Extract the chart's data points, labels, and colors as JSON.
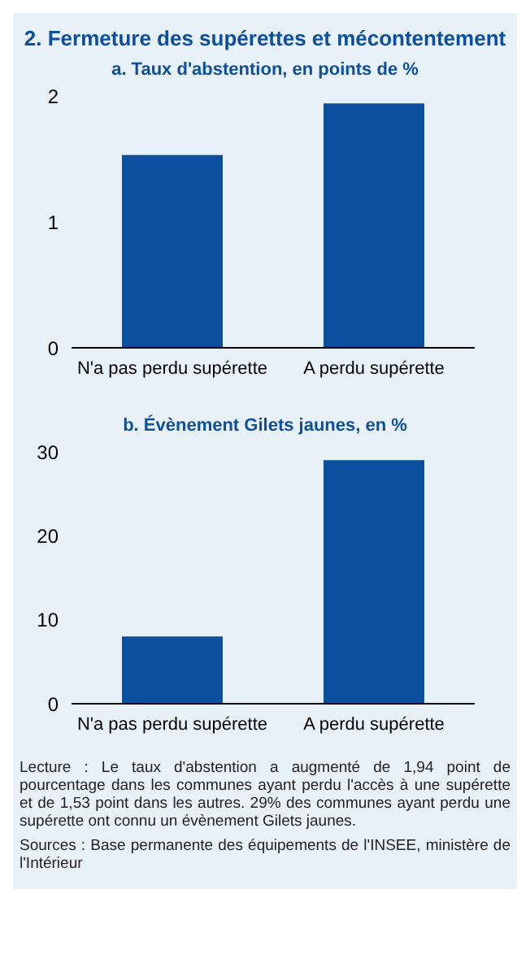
{
  "chart_data": [
    {
      "type": "bar",
      "title": "2. Fermeture des supérettes et mécontentement",
      "subtitle": "a. Taux d'abstention, en points de %",
      "categories": [
        "N'a pas perdu supérette",
        "A perdu supérette"
      ],
      "values": [
        1.53,
        1.94
      ],
      "color": "#0b4f9e",
      "ylim": [
        0,
        2
      ],
      "yticks": [
        0,
        1,
        2
      ],
      "grid": false,
      "legend": false
    },
    {
      "type": "bar",
      "subtitle": "b. Évènement Gilets jaunes, en %",
      "categories": [
        "N'a pas perdu supérette",
        "A perdu supérette"
      ],
      "values": [
        8,
        29
      ],
      "color": "#0b4f9e",
      "ylim": [
        0,
        30
      ],
      "yticks": [
        0,
        10,
        20,
        30
      ],
      "grid": false,
      "legend": false,
      "annotations": [
        "Lecture : Le taux d'abstention a augmenté de 1,94 point de pourcentage dans les communes ayant perdu l'accès à une supérette et de 1,53 point dans les autres. 29% des communes ayant perdu une supérette ont connu un évènement Gilets jaunes.",
        "Sources : Base permanente des équipements de l'INSEE, ministère de l'Intérieur"
      ]
    }
  ]
}
